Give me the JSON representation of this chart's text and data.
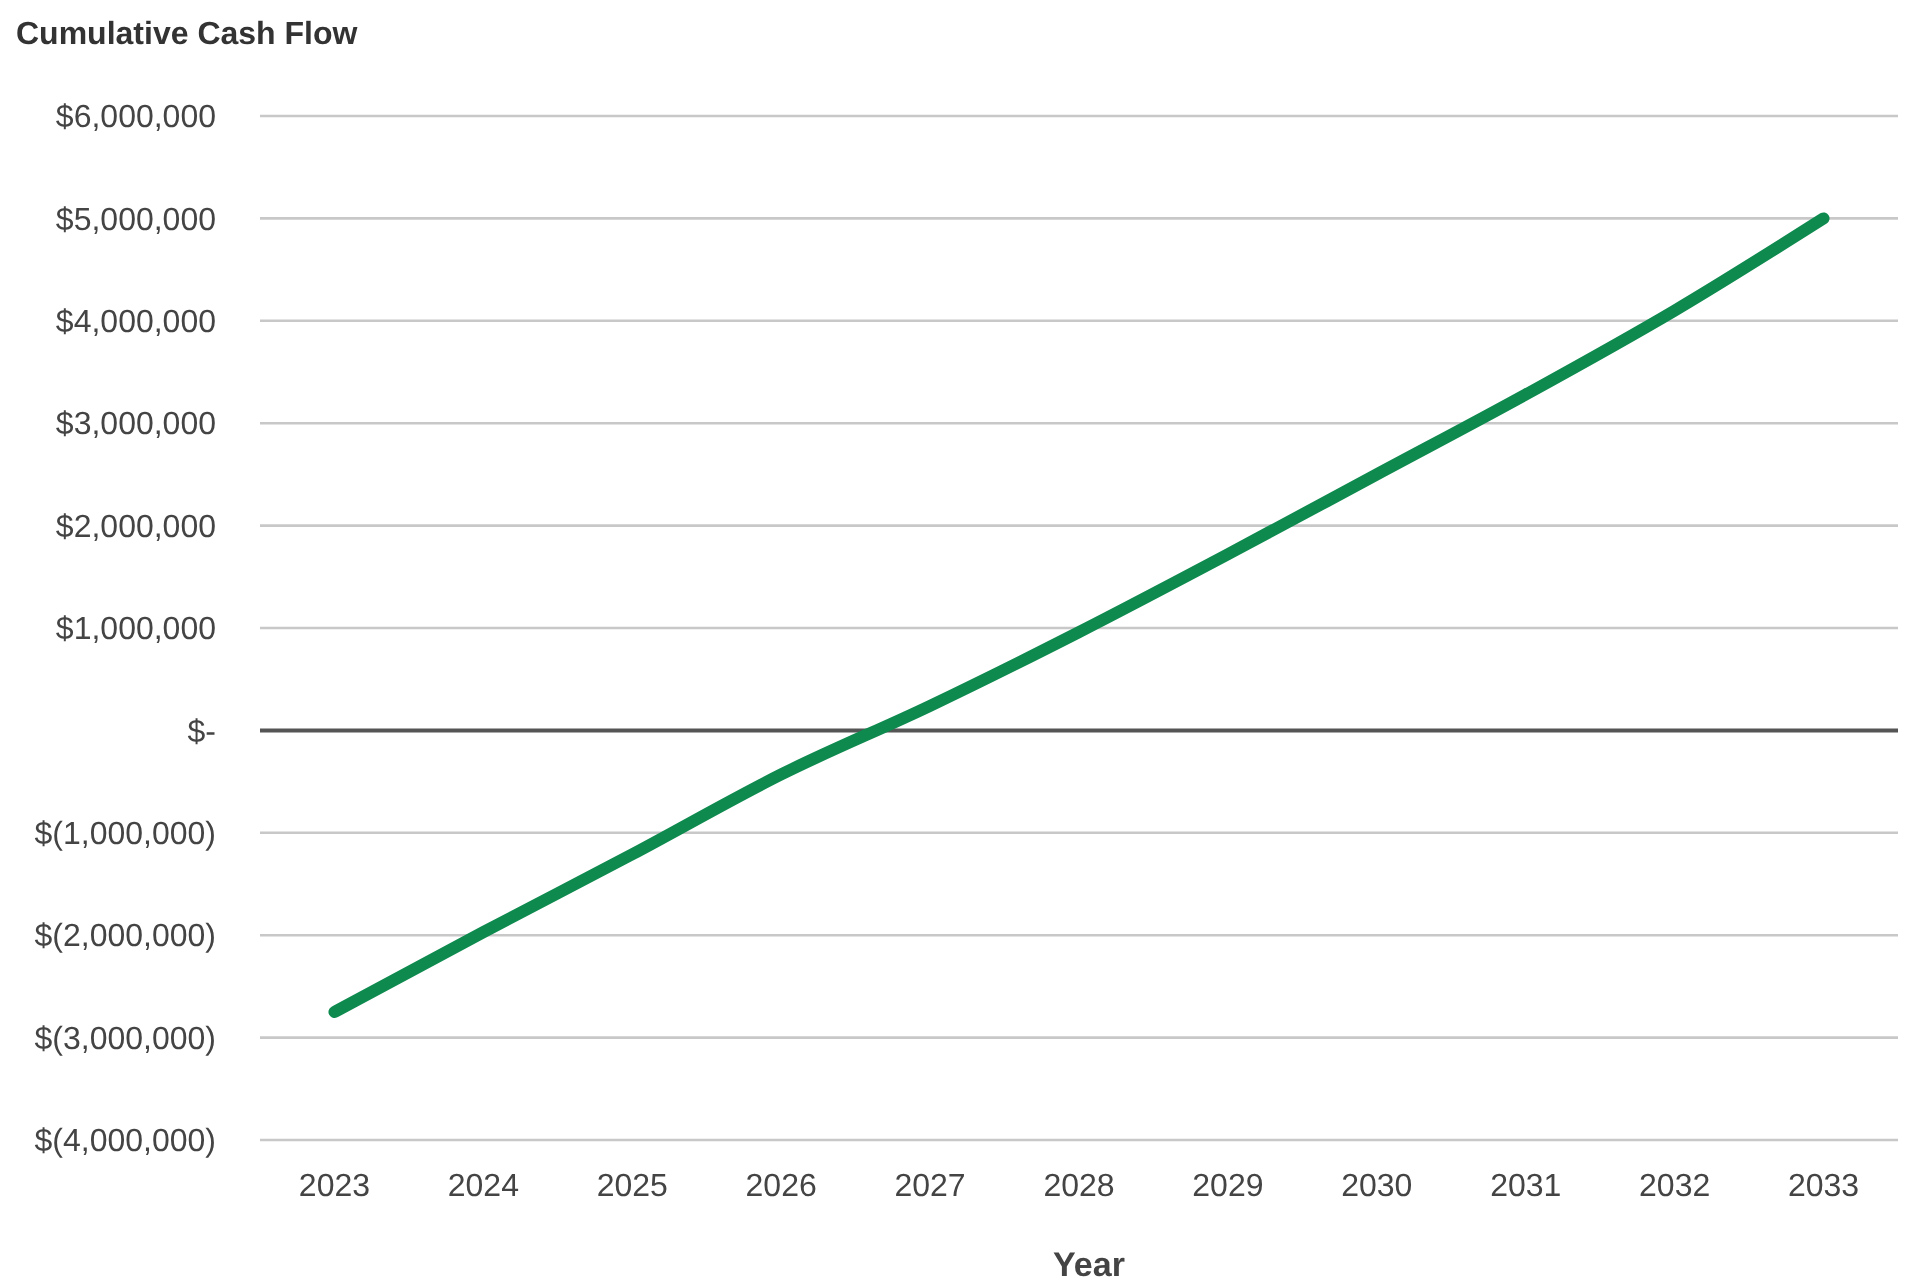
{
  "chart_data": {
    "type": "line",
    "title": "Cumulative Cash Flow",
    "xlabel": "Year",
    "categories": [
      "2023",
      "2024",
      "2025",
      "2026",
      "2027",
      "2028",
      "2029",
      "2030",
      "2031",
      "2032",
      "2033"
    ],
    "series": [
      {
        "color": "#0e8a4f",
        "values": [
          -2750000,
          -1970000,
          -1210000,
          -430000,
          240000,
          960000,
          1720000,
          2500000,
          3280000,
          4100000,
          5000000
        ]
      }
    ],
    "ylim": [
      -4000000,
      6000000
    ],
    "yticks": [
      {
        "value": -4000000,
        "label": "$(4,000,000)"
      },
      {
        "value": -3000000,
        "label": "$(3,000,000)"
      },
      {
        "value": -2000000,
        "label": "$(2,000,000)"
      },
      {
        "value": -1000000,
        "label": "$(1,000,000)"
      },
      {
        "value": 0,
        "label": "$-"
      },
      {
        "value": 1000000,
        "label": "$1,000,000"
      },
      {
        "value": 2000000,
        "label": "$2,000,000"
      },
      {
        "value": 3000000,
        "label": "$3,000,000"
      },
      {
        "value": 4000000,
        "label": "$4,000,000"
      },
      {
        "value": 5000000,
        "label": "$5,000,000"
      },
      {
        "value": 6000000,
        "label": "$6,000,000"
      }
    ],
    "grid": "y",
    "marker": "none",
    "line_style": "solid"
  }
}
